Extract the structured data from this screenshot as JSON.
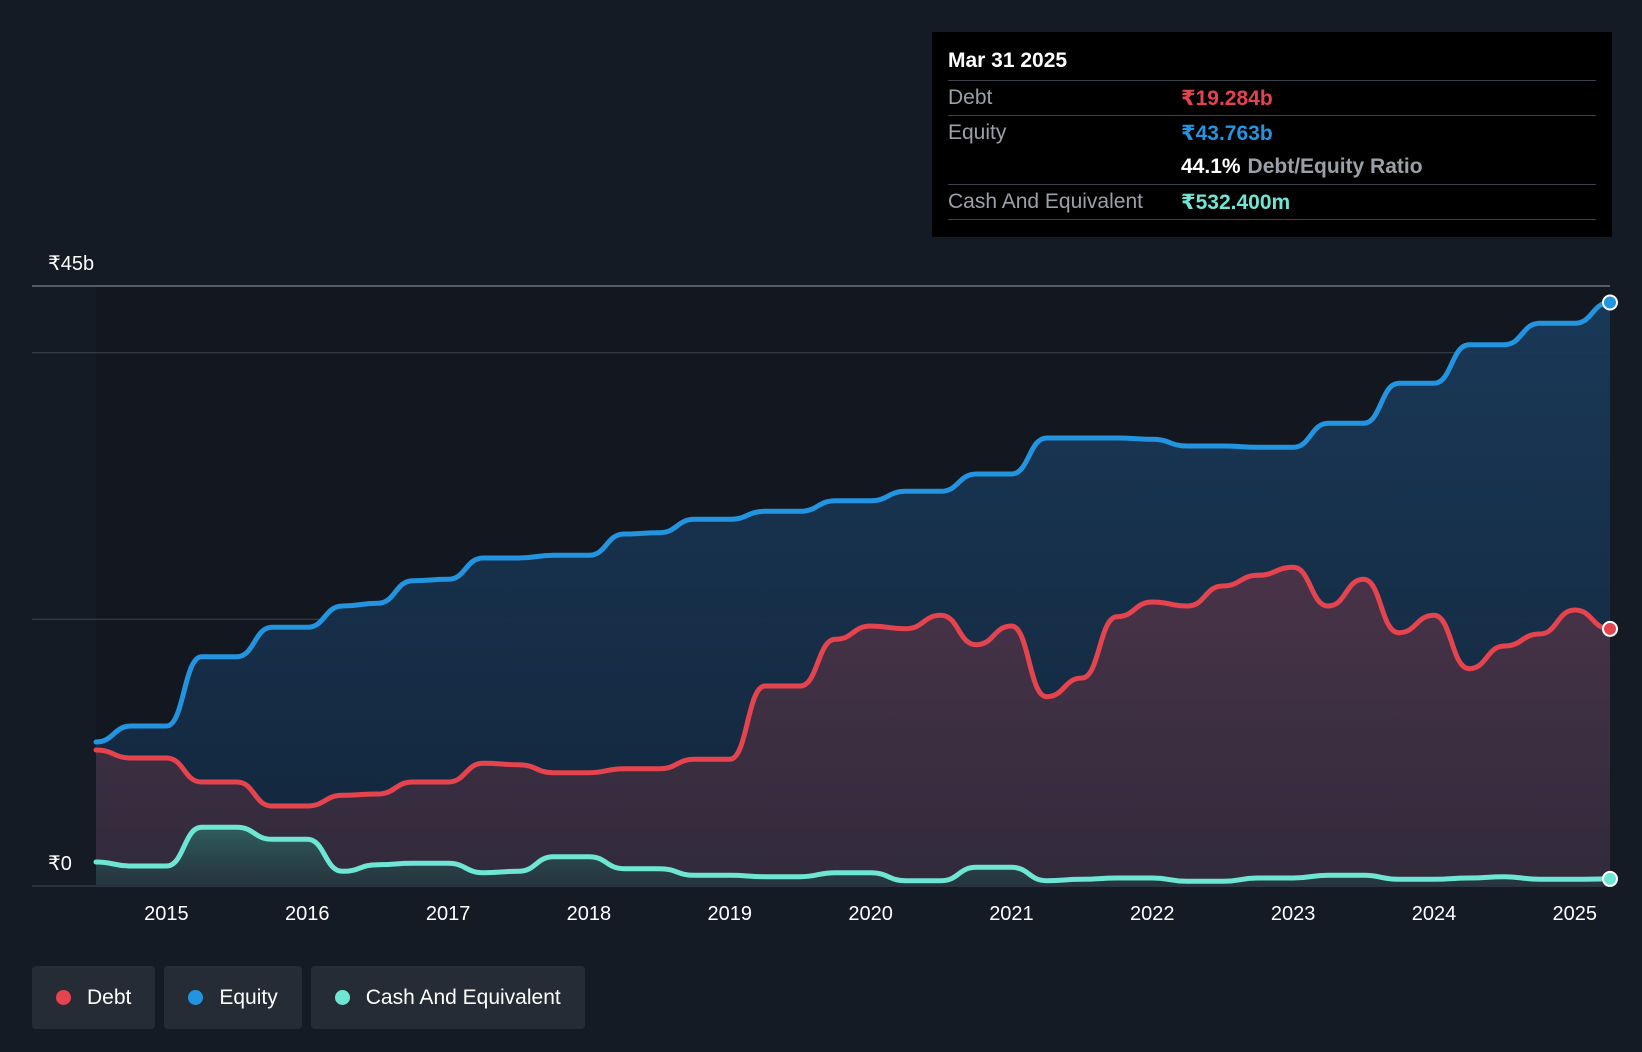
{
  "colors": {
    "debt": "#e5444f",
    "equity": "#2394e0",
    "cash": "#6ee6d3",
    "background": "#151b24",
    "plot_background": "#121720"
  },
  "tooltip": {
    "date": "Mar 31 2025",
    "debt_label": "Debt",
    "debt_value": "₹19.284b",
    "equity_label": "Equity",
    "equity_value": "₹43.763b",
    "ratio_value": "44.1%",
    "ratio_label": "Debt/Equity Ratio",
    "cash_label": "Cash And Equivalent",
    "cash_value": "₹532.400m"
  },
  "legend": {
    "debt": "Debt",
    "equity": "Equity",
    "cash": "Cash And Equivalent"
  },
  "chart_data": {
    "type": "area",
    "title": "",
    "xlabel": "",
    "ylabel": "",
    "y_tick_labels": {
      "top": "₹45b",
      "bottom": "₹0"
    },
    "ylim": [
      0,
      45
    ],
    "xlim": [
      2014.5,
      2025.25
    ],
    "x_ticks": [
      2015,
      2016,
      2017,
      2018,
      2019,
      2020,
      2021,
      2022,
      2023,
      2024,
      2025
    ],
    "x_tick_labels": [
      "2015",
      "2016",
      "2017",
      "2018",
      "2019",
      "2020",
      "2021",
      "2022",
      "2023",
      "2024",
      "2025"
    ],
    "gridlines": [
      0,
      20,
      40,
      45
    ],
    "series": [
      {
        "name": "Equity",
        "color_key": "equity",
        "x": [
          2014.5,
          2014.75,
          2015.0,
          2015.25,
          2015.5,
          2015.75,
          2016.0,
          2016.25,
          2016.5,
          2016.75,
          2017.0,
          2017.25,
          2017.5,
          2017.75,
          2018.0,
          2018.25,
          2018.5,
          2018.75,
          2019.0,
          2019.25,
          2019.5,
          2019.75,
          2020.0,
          2020.25,
          2020.5,
          2020.75,
          2021.0,
          2021.25,
          2021.5,
          2021.75,
          2022.0,
          2022.25,
          2022.5,
          2022.75,
          2023.0,
          2023.25,
          2023.5,
          2023.75,
          2024.0,
          2024.25,
          2024.5,
          2024.75,
          2025.0,
          2025.25
        ],
        "values": [
          10.8,
          12.0,
          12.0,
          17.2,
          17.2,
          19.4,
          19.4,
          21.0,
          21.2,
          22.9,
          23.0,
          24.6,
          24.6,
          24.8,
          24.8,
          26.4,
          26.5,
          27.5,
          27.5,
          28.1,
          28.1,
          28.9,
          28.9,
          29.6,
          29.6,
          30.9,
          30.9,
          33.6,
          33.6,
          33.6,
          33.5,
          33.0,
          33.0,
          32.9,
          32.9,
          34.7,
          34.7,
          37.7,
          37.7,
          40.6,
          40.6,
          42.2,
          42.2,
          43.763
        ]
      },
      {
        "name": "Debt",
        "color_key": "debt",
        "x": [
          2014.5,
          2014.75,
          2015.0,
          2015.25,
          2015.5,
          2015.75,
          2016.0,
          2016.25,
          2016.5,
          2016.75,
          2017.0,
          2017.25,
          2017.5,
          2017.75,
          2018.0,
          2018.25,
          2018.5,
          2018.75,
          2019.0,
          2019.25,
          2019.5,
          2019.75,
          2020.0,
          2020.25,
          2020.5,
          2020.75,
          2021.0,
          2021.25,
          2021.5,
          2021.75,
          2022.0,
          2022.25,
          2022.5,
          2022.75,
          2023.0,
          2023.25,
          2023.5,
          2023.75,
          2024.0,
          2024.25,
          2024.5,
          2024.75,
          2025.0,
          2025.25
        ],
        "values": [
          10.2,
          9.6,
          9.6,
          7.8,
          7.8,
          6.0,
          6.0,
          6.8,
          6.9,
          7.8,
          7.8,
          9.2,
          9.1,
          8.5,
          8.5,
          8.8,
          8.8,
          9.5,
          9.5,
          15.0,
          15.0,
          18.5,
          19.5,
          19.3,
          20.3,
          18.1,
          19.5,
          14.2,
          15.6,
          20.2,
          21.3,
          21.0,
          22.5,
          23.3,
          23.9,
          21.0,
          23.0,
          19.0,
          20.3,
          16.3,
          18.0,
          18.9,
          20.7,
          19.284
        ]
      },
      {
        "name": "Cash And Equivalent",
        "color_key": "cash",
        "x": [
          2014.5,
          2014.75,
          2015.0,
          2015.25,
          2015.5,
          2015.75,
          2016.0,
          2016.25,
          2016.5,
          2016.75,
          2017.0,
          2017.25,
          2017.5,
          2017.75,
          2018.0,
          2018.25,
          2018.5,
          2018.75,
          2019.0,
          2019.25,
          2019.5,
          2019.75,
          2020.0,
          2020.25,
          2020.5,
          2020.75,
          2021.0,
          2021.25,
          2021.5,
          2021.75,
          2022.0,
          2022.25,
          2022.5,
          2022.75,
          2023.0,
          2023.25,
          2023.5,
          2023.75,
          2024.0,
          2024.25,
          2024.5,
          2024.75,
          2025.0,
          2025.25
        ],
        "values": [
          1.8,
          1.5,
          1.5,
          4.4,
          4.4,
          3.5,
          3.5,
          1.1,
          1.6,
          1.7,
          1.7,
          1.0,
          1.1,
          2.2,
          2.2,
          1.3,
          1.3,
          0.8,
          0.8,
          0.7,
          0.7,
          1.0,
          1.0,
          0.4,
          0.4,
          1.4,
          1.4,
          0.4,
          0.5,
          0.6,
          0.6,
          0.35,
          0.35,
          0.6,
          0.6,
          0.8,
          0.8,
          0.5,
          0.5,
          0.6,
          0.7,
          0.5,
          0.5,
          0.532
        ]
      }
    ]
  }
}
